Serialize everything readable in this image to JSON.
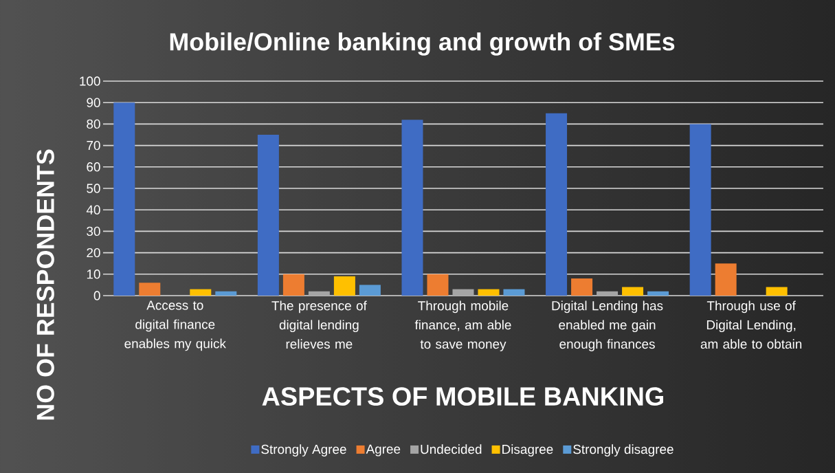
{
  "chart_data": {
    "type": "bar",
    "title": "Mobile/Online banking and growth of SMEs",
    "xlabel": "ASPECTS OF MOBILE BANKING",
    "ylabel": "NO OF RESPONDENTS",
    "categories": [
      "Access to digital finance enables my quick",
      "The presence of digital lending relieves me",
      "Through mobile finance, am able to save money",
      "Digital Lending has enabled me gain enough finances",
      "Through use of Digital Lending, am able to obtain"
    ],
    "series": [
      {
        "name": "Strongly Agree",
        "color": "#3f6cc4",
        "values": [
          90,
          75,
          82,
          85,
          80
        ]
      },
      {
        "name": "Agree",
        "color": "#ed7d31",
        "values": [
          6,
          10,
          10,
          8,
          15
        ]
      },
      {
        "name": "Undecided",
        "color": "#a5a5a5",
        "values": [
          0,
          2,
          3,
          2,
          0
        ]
      },
      {
        "name": "Disagree",
        "color": "#ffc000",
        "values": [
          3,
          9,
          3,
          4,
          4
        ]
      },
      {
        "name": "Strongly disagree",
        "color": "#5b9bd5",
        "values": [
          2,
          5,
          3,
          2,
          0
        ]
      }
    ],
    "ylim": [
      0,
      100
    ],
    "yticks": [
      0,
      10,
      20,
      30,
      40,
      50,
      60,
      70,
      80,
      90,
      100
    ],
    "grid": "y",
    "legend": "bottom"
  }
}
